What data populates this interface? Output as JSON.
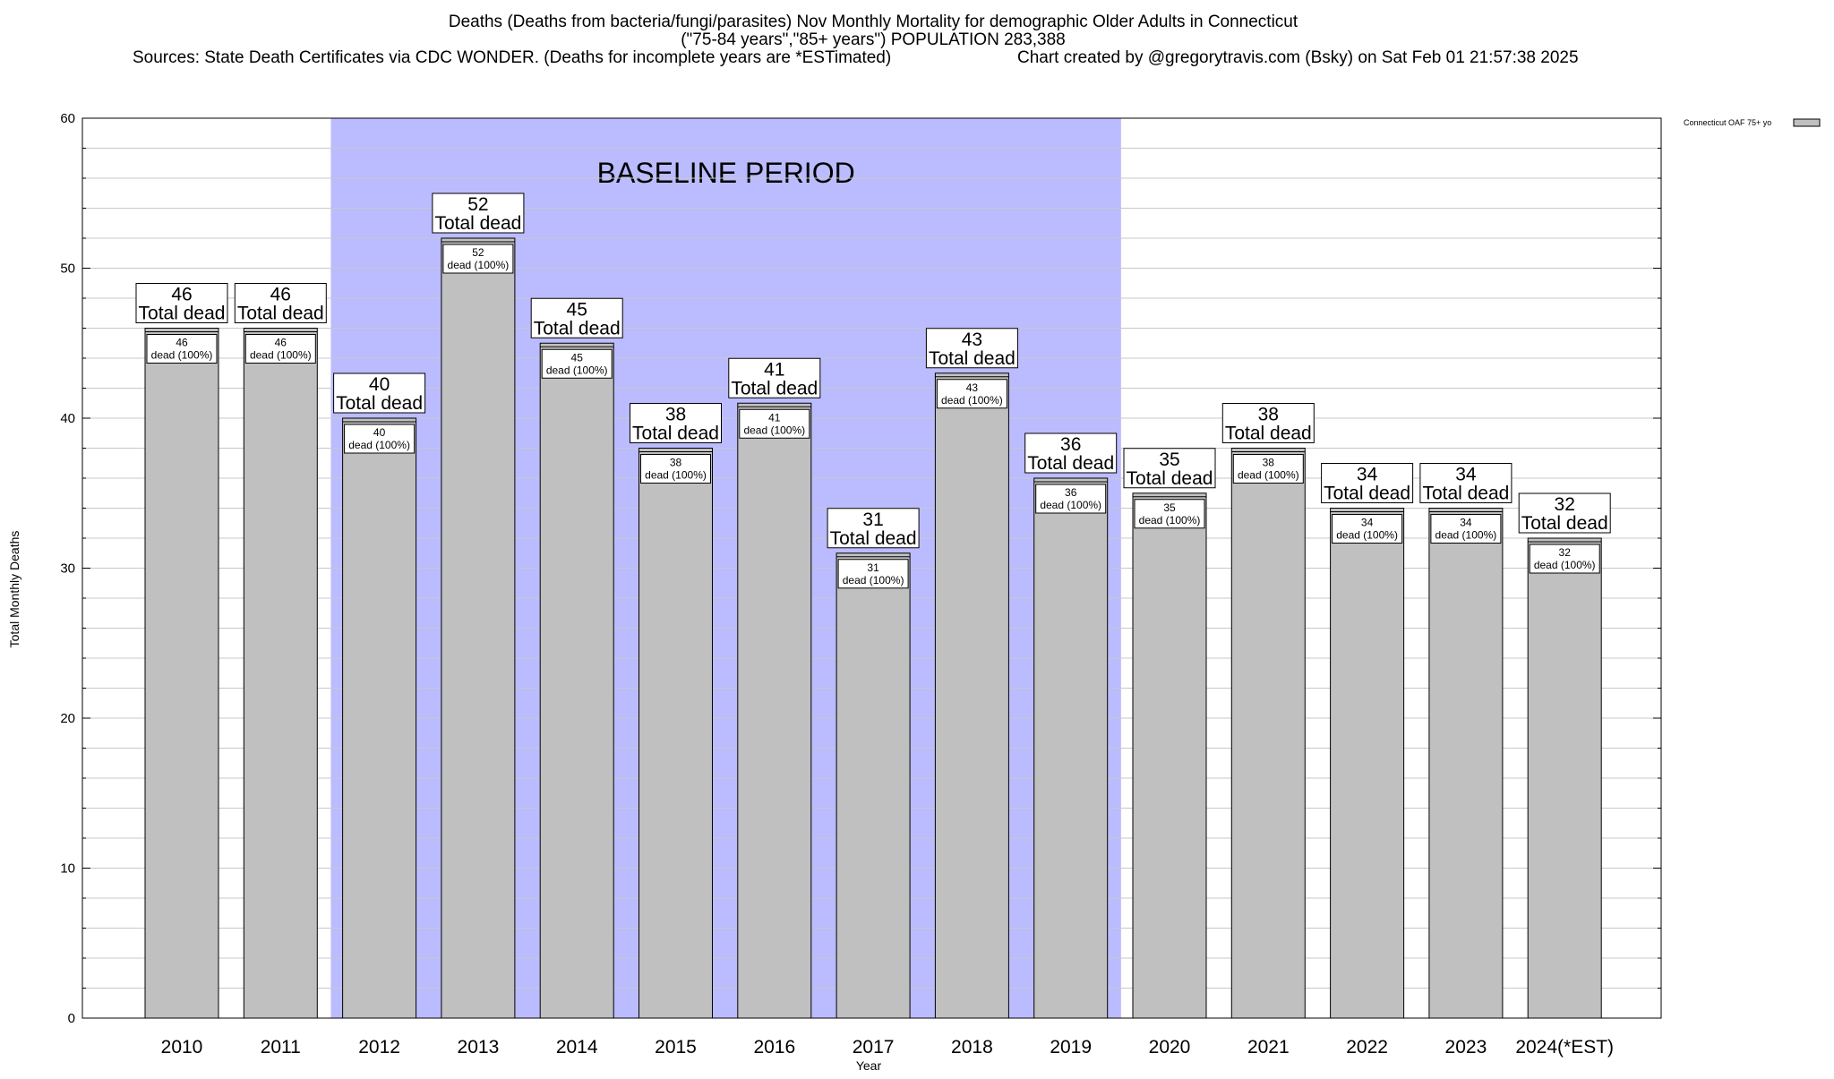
{
  "chart_data": {
    "type": "bar",
    "title_lines": [
      "Deaths (Deaths from bacteria/fungi/parasites) Nov Monthly Mortality for demographic Older Adults in Connecticut",
      "(\"75-84 years\",\"85+ years\") POPULATION 283,388"
    ],
    "sources": "Sources: State Death Certificates via CDC WONDER. (Deaths for incomplete years are *ESTimated)",
    "credit": "Chart created by @gregorytravis.com (Bsky) on Sat Feb 01 21:57:38 2025",
    "xlabel": "Year",
    "ylabel": "Total Monthly Deaths",
    "ylim": [
      0,
      60
    ],
    "y_major_ticks": [
      0,
      10,
      20,
      30,
      40,
      50,
      60
    ],
    "y_minor_step": 2,
    "grid": true,
    "categories": [
      "2010",
      "2011",
      "2012",
      "2013",
      "2014",
      "2015",
      "2016",
      "2017",
      "2018",
      "2019",
      "2020",
      "2021",
      "2022",
      "2023",
      "2024(*EST)"
    ],
    "series": [
      {
        "name": "Connecticut OAF 75+ yo",
        "values": [
          46,
          46,
          40,
          52,
          45,
          38,
          41,
          31,
          43,
          36,
          35,
          38,
          34,
          34,
          32
        ],
        "color": "#c0c0c0"
      }
    ],
    "label_top_suffix": "Total dead",
    "label_inner_suffix": "dead (100%)",
    "baseline": {
      "label": "BASELINE PERIOD",
      "start_category": "2012",
      "end_category": "2019",
      "color": "#bbbbff"
    },
    "legend_position": "top-right"
  }
}
